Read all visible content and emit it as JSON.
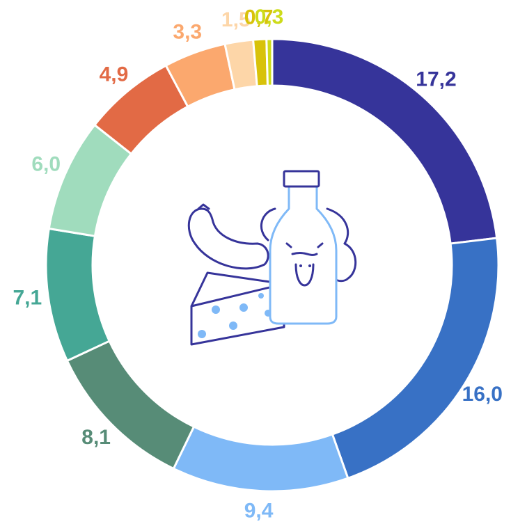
{
  "chart_data": {
    "type": "donut",
    "values": [
      17.2,
      16.0,
      9.4,
      8.1,
      7.1,
      6.0,
      4.9,
      3.3,
      1.5,
      0.7,
      0.3
    ],
    "value_labels": [
      "17,2",
      "16,0",
      "9,4",
      "8,1",
      "7,1",
      "6,0",
      "4,9",
      "3,3",
      "1,5",
      "0,7",
      "0,3"
    ],
    "colors": [
      "#36349a",
      "#3871c5",
      "#7fb9f7",
      "#578c77",
      "#45a795",
      "#a0dcbd",
      "#e26a45",
      "#fba86e",
      "#fdd6a8",
      "#d8c20a",
      "#cddb1a"
    ]
  }
}
